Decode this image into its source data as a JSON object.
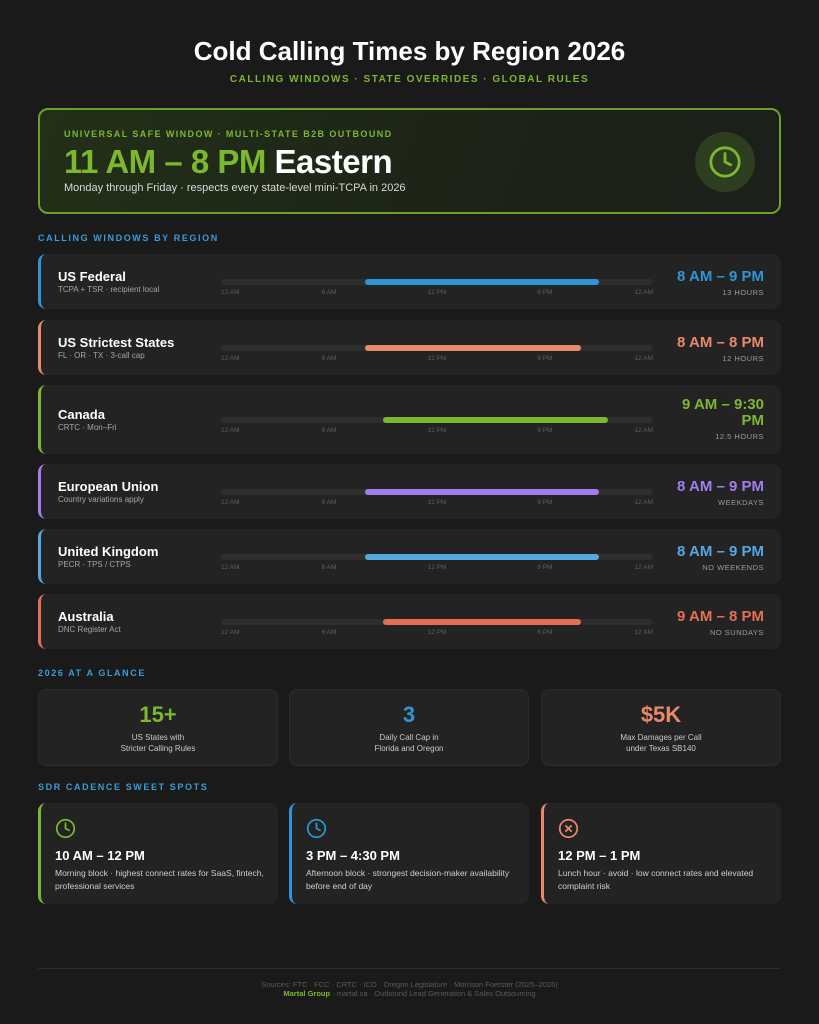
{
  "title": "Cold Calling Times by Region 2026",
  "subtitle": "CALLING WINDOWS · STATE OVERRIDES · GLOBAL RULES",
  "hero": {
    "kicker": "UNIVERSAL SAFE WINDOW · MULTI-STATE B2B OUTBOUND",
    "time_green": "11 AM – 8 PM",
    "time_white": "Eastern",
    "description": "Monday through Friday · respects every state-level mini-TCPA in 2026",
    "icon": "clock-icon"
  },
  "regions_label": "CALLING WINDOWS BY REGION",
  "tick_labels": [
    "12 AM",
    "6 AM",
    "12 PM",
    "6 PM",
    "12 AM"
  ],
  "regions": [
    {
      "name": "US Federal",
      "sub": "TCPA + TSR · recipient local",
      "time": "8 AM – 9 PM",
      "note": "13 HOURS",
      "color": "#2f95d6",
      "start_hour": 8,
      "end_hour": 21
    },
    {
      "name": "US Strictest States",
      "sub": "FL · OR · TX · 3-call cap",
      "time": "8 AM – 8 PM",
      "note": "12 HOURS",
      "color": "#e9896b",
      "start_hour": 8,
      "end_hour": 20
    },
    {
      "name": "Canada",
      "sub": "CRTC · Mon–Fri",
      "time": "9 AM – 9:30 PM",
      "note": "12.5 HOURS",
      "color": "#7cb82f",
      "start_hour": 9,
      "end_hour": 21.5
    },
    {
      "name": "European Union",
      "sub": "Country variations apply",
      "time": "8 AM – 9 PM",
      "note": "WEEKDAYS",
      "color": "#a27df0",
      "start_hour": 8,
      "end_hour": 21
    },
    {
      "name": "United Kingdom",
      "sub": "PECR · TPS / CTPS",
      "time": "8 AM – 9 PM",
      "note": "NO WEEKENDS",
      "color": "#54a9e3",
      "start_hour": 8,
      "end_hour": 21
    },
    {
      "name": "Australia",
      "sub": "DNC Register Act",
      "time": "9 AM – 8 PM",
      "note": "NO SUNDAYS",
      "color": "#e46f52",
      "start_hour": 9,
      "end_hour": 20
    }
  ],
  "glance_label": "2026 AT A GLANCE",
  "stats": [
    {
      "value": "15+",
      "line1": "US States with",
      "line2": "Stricter Calling Rules",
      "color": "#7cb82f"
    },
    {
      "value": "3",
      "line1": "Daily Call Cap in",
      "line2": "Florida and Oregon",
      "color": "#2f95d6"
    },
    {
      "value": "$5K",
      "line1": "Max Damages per Call",
      "line2": "under Texas SB140",
      "color": "#e9896b"
    }
  ],
  "spots_label": "SDR CADENCE SWEET SPOTS",
  "spots": [
    {
      "time": "10 AM – 12 PM",
      "desc": "Morning block · highest connect rates for SaaS, fintech, professional services",
      "color": "#7cb82f",
      "icon": "clock-icon"
    },
    {
      "time": "3 PM – 4:30 PM",
      "desc": "Afternoon block · strongest decision-maker availability before end of day",
      "color": "#2f95d6",
      "icon": "clock-icon"
    },
    {
      "time": "12 PM – 1 PM",
      "desc": "Lunch hour · avoid · low connect rates and elevated complaint risk",
      "color": "#e9896b",
      "icon": "x-circle-icon"
    }
  ],
  "footer": {
    "sources": "Sources: FTC · FCC · CRTC · ICO · Oregon Legislature · Morrison Foerster (2025–2026)",
    "brand": "Martal Group",
    "rest": " · martal.ca · Outbound Lead Generation & Sales Outsourcing"
  }
}
